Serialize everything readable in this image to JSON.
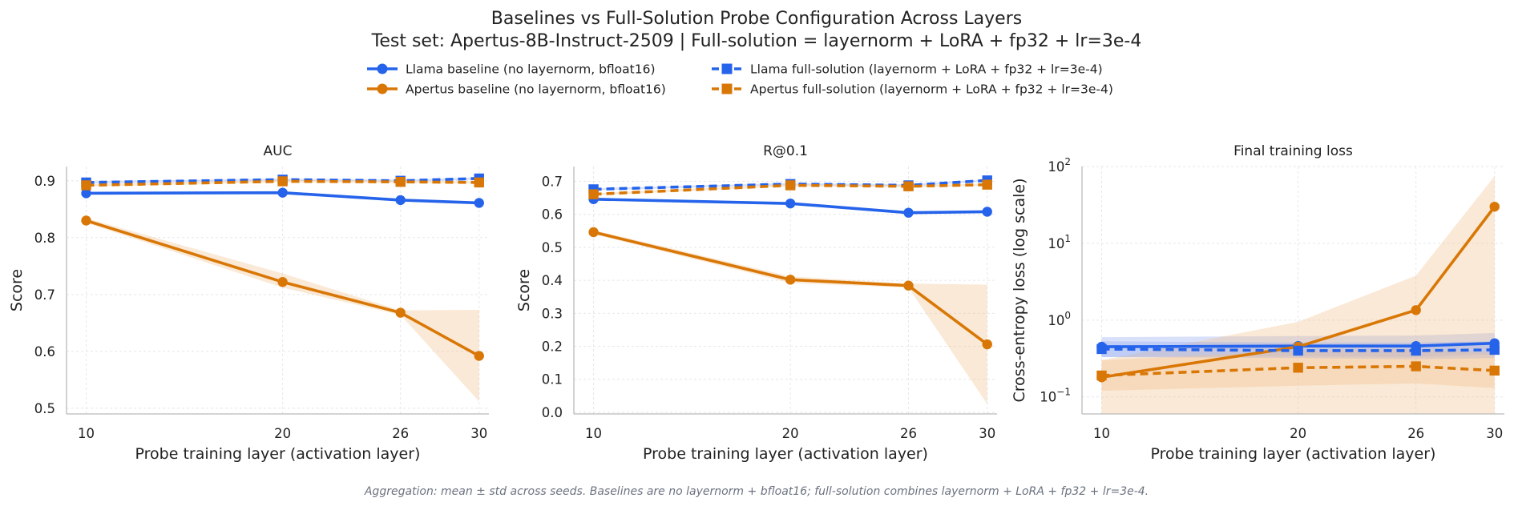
{
  "figure": {
    "title_line1": "Baselines vs Full-Solution Probe Configuration Across Layers",
    "title_line2": "Test set: Apertus-8B-Instruct-2509 | Full-solution = layernorm + LoRA + fp32 + lr=3e-4",
    "footnote": "Aggregation: mean ± std across seeds. Baselines are no layernorm + bfloat16; full-solution combines layernorm + LoRA + fp32 + lr=3e-4."
  },
  "legend": [
    {
      "label": "Llama baseline (no layernorm, bfloat16)",
      "color": "#2563eb",
      "marker": "circle",
      "dash": "solid"
    },
    {
      "label": "Apertus baseline (no layernorm, bfloat16)",
      "color": "#d97706",
      "marker": "circle",
      "dash": "solid"
    },
    {
      "label": "Llama full-solution (layernorm + LoRA + fp32 + lr=3e-4)",
      "color": "#2563eb",
      "marker": "square",
      "dash": "dashed"
    },
    {
      "label": "Apertus full-solution (layernorm + LoRA + fp32 + lr=3e-4)",
      "color": "#d97706",
      "marker": "square",
      "dash": "dashed"
    }
  ],
  "chart_data": [
    {
      "type": "line",
      "title": "AUC",
      "xlabel": "Probe training layer (activation layer)",
      "ylabel": "Score",
      "x": [
        10,
        20,
        26,
        30
      ],
      "xticks": [
        "10",
        "20",
        "26",
        "30"
      ],
      "ylim": [
        0.49,
        0.925
      ],
      "yscale": "linear",
      "yticks": [
        0.5,
        0.6,
        0.7,
        0.8,
        0.9
      ],
      "ytick_labels": [
        "0.5",
        "0.6",
        "0.7",
        "0.8",
        "0.9"
      ],
      "grid": true,
      "series": [
        {
          "name": "Llama baseline (no layernorm, bfloat16)",
          "values": [
            0.878,
            0.879,
            0.866,
            0.861
          ],
          "lower": [
            0.876,
            0.877,
            0.864,
            0.859
          ],
          "upper": [
            0.88,
            0.881,
            0.868,
            0.863
          ]
        },
        {
          "name": "Apertus baseline (no layernorm, bfloat16)",
          "values": [
            0.83,
            0.722,
            0.668,
            0.592
          ],
          "lower": [
            0.826,
            0.712,
            0.664,
            0.512
          ],
          "upper": [
            0.834,
            0.737,
            0.672,
            0.673
          ]
        },
        {
          "name": "Llama full-solution (layernorm + LoRA + fp32 + lr=3e-4)",
          "values": [
            0.897,
            0.902,
            0.9,
            0.904
          ],
          "lower": [
            0.895,
            0.9,
            0.898,
            0.902
          ],
          "upper": [
            0.899,
            0.904,
            0.902,
            0.906
          ]
        },
        {
          "name": "Apertus full-solution (layernorm + LoRA + fp32 + lr=3e-4)",
          "values": [
            0.892,
            0.899,
            0.898,
            0.897
          ],
          "lower": [
            0.89,
            0.897,
            0.896,
            0.895
          ],
          "upper": [
            0.894,
            0.901,
            0.9,
            0.899
          ]
        }
      ]
    },
    {
      "type": "line",
      "title": "R@0.1",
      "xlabel": "Probe training layer (activation layer)",
      "ylabel": "Score",
      "x": [
        10,
        20,
        26,
        30
      ],
      "xticks": [
        "10",
        "20",
        "26",
        "30"
      ],
      "ylim": [
        -0.005,
        0.745
      ],
      "yscale": "linear",
      "yticks": [
        0.0,
        0.1,
        0.2,
        0.3,
        0.4,
        0.5,
        0.6,
        0.7
      ],
      "ytick_labels": [
        "0.0",
        "0.1",
        "0.2",
        "0.3",
        "0.4",
        "0.5",
        "0.6",
        "0.7"
      ],
      "grid": true,
      "series": [
        {
          "name": "Llama baseline (no layernorm, bfloat16)",
          "values": [
            0.646,
            0.633,
            0.605,
            0.608
          ],
          "lower": [
            0.643,
            0.63,
            0.602,
            0.605
          ],
          "upper": [
            0.649,
            0.636,
            0.608,
            0.611
          ]
        },
        {
          "name": "Apertus baseline (no layernorm, bfloat16)",
          "values": [
            0.546,
            0.402,
            0.384,
            0.206
          ],
          "lower": [
            0.54,
            0.392,
            0.378,
            0.025
          ],
          "upper": [
            0.552,
            0.412,
            0.39,
            0.387
          ]
        },
        {
          "name": "Llama full-solution (layernorm + LoRA + fp32 + lr=3e-4)",
          "values": [
            0.676,
            0.692,
            0.688,
            0.703
          ],
          "lower": [
            0.673,
            0.689,
            0.685,
            0.7
          ],
          "upper": [
            0.679,
            0.695,
            0.691,
            0.706
          ]
        },
        {
          "name": "Apertus full-solution (layernorm + LoRA + fp32 + lr=3e-4)",
          "values": [
            0.661,
            0.688,
            0.685,
            0.69
          ],
          "lower": [
            0.658,
            0.685,
            0.682,
            0.687
          ],
          "upper": [
            0.664,
            0.691,
            0.688,
            0.693
          ]
        }
      ]
    },
    {
      "type": "line",
      "title": "Final training loss",
      "xlabel": "Probe training layer (activation layer)",
      "ylabel": "Cross-entropy loss (log scale)",
      "x": [
        10,
        20,
        26,
        30
      ],
      "xticks": [
        "10",
        "20",
        "26",
        "30"
      ],
      "ylim": [
        0.06,
        100
      ],
      "yscale": "log",
      "yticks": [
        0.1,
        1,
        10,
        100
      ],
      "ytick_labels": [
        {
          "base": "10",
          "exp": "−1"
        },
        {
          "base": "10",
          "exp": "0"
        },
        {
          "base": "10",
          "exp": "1"
        },
        {
          "base": "10",
          "exp": "2"
        }
      ],
      "grid": true,
      "series": [
        {
          "name": "Llama baseline (no layernorm, bfloat16)",
          "values": [
            0.45,
            0.46,
            0.46,
            0.5
          ],
          "lower": [
            0.33,
            0.34,
            0.33,
            0.36
          ],
          "upper": [
            0.6,
            0.62,
            0.63,
            0.68
          ]
        },
        {
          "name": "Apertus baseline (no layernorm, bfloat16)",
          "values": [
            0.18,
            0.45,
            1.35,
            30.0
          ],
          "lower": [
            0.05,
            0.05,
            0.05,
            0.05
          ],
          "upper": [
            0.3,
            0.95,
            3.8,
            75.0
          ]
        },
        {
          "name": "Llama full-solution (layernorm + LoRA + fp32 + lr=3e-4)",
          "values": [
            0.42,
            0.4,
            0.4,
            0.41
          ],
          "lower": [
            0.33,
            0.32,
            0.31,
            0.32
          ],
          "upper": [
            0.53,
            0.51,
            0.51,
            0.53
          ]
        },
        {
          "name": "Apertus full-solution (layernorm + LoRA + fp32 + lr=3e-4)",
          "values": [
            0.19,
            0.24,
            0.25,
            0.22
          ],
          "lower": [
            0.12,
            0.14,
            0.15,
            0.13
          ],
          "upper": [
            0.3,
            0.4,
            0.42,
            0.37
          ]
        }
      ]
    }
  ]
}
